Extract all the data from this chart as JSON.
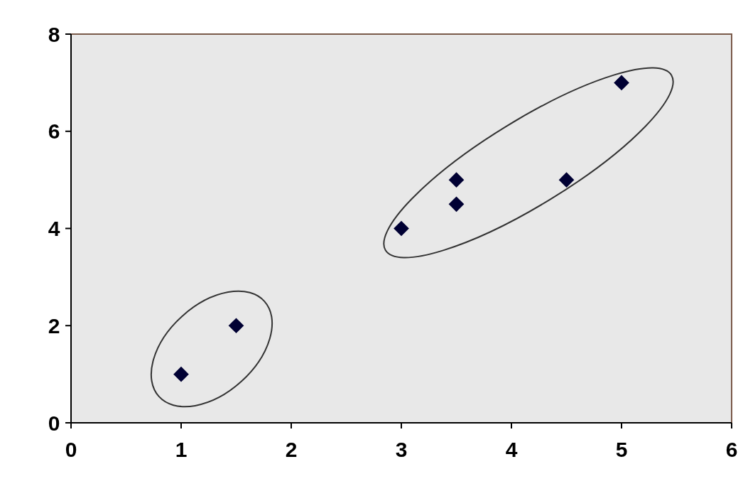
{
  "chart_data": {
    "type": "scatter",
    "x": [
      1,
      1.5,
      3,
      3.5,
      3.5,
      4.5,
      5
    ],
    "series": [
      {
        "color": "#000033",
        "values": [
          1,
          2,
          4,
          5,
          4.5,
          5,
          7
        ]
      }
    ],
    "xlim": [
      0,
      6
    ],
    "xticks": [
      0,
      1,
      2,
      3,
      4,
      5,
      6
    ],
    "ylim": [
      0,
      8
    ],
    "yticks": [
      0,
      2,
      4,
      6,
      8
    ],
    "grid": false,
    "marker": "diamond"
  }
}
